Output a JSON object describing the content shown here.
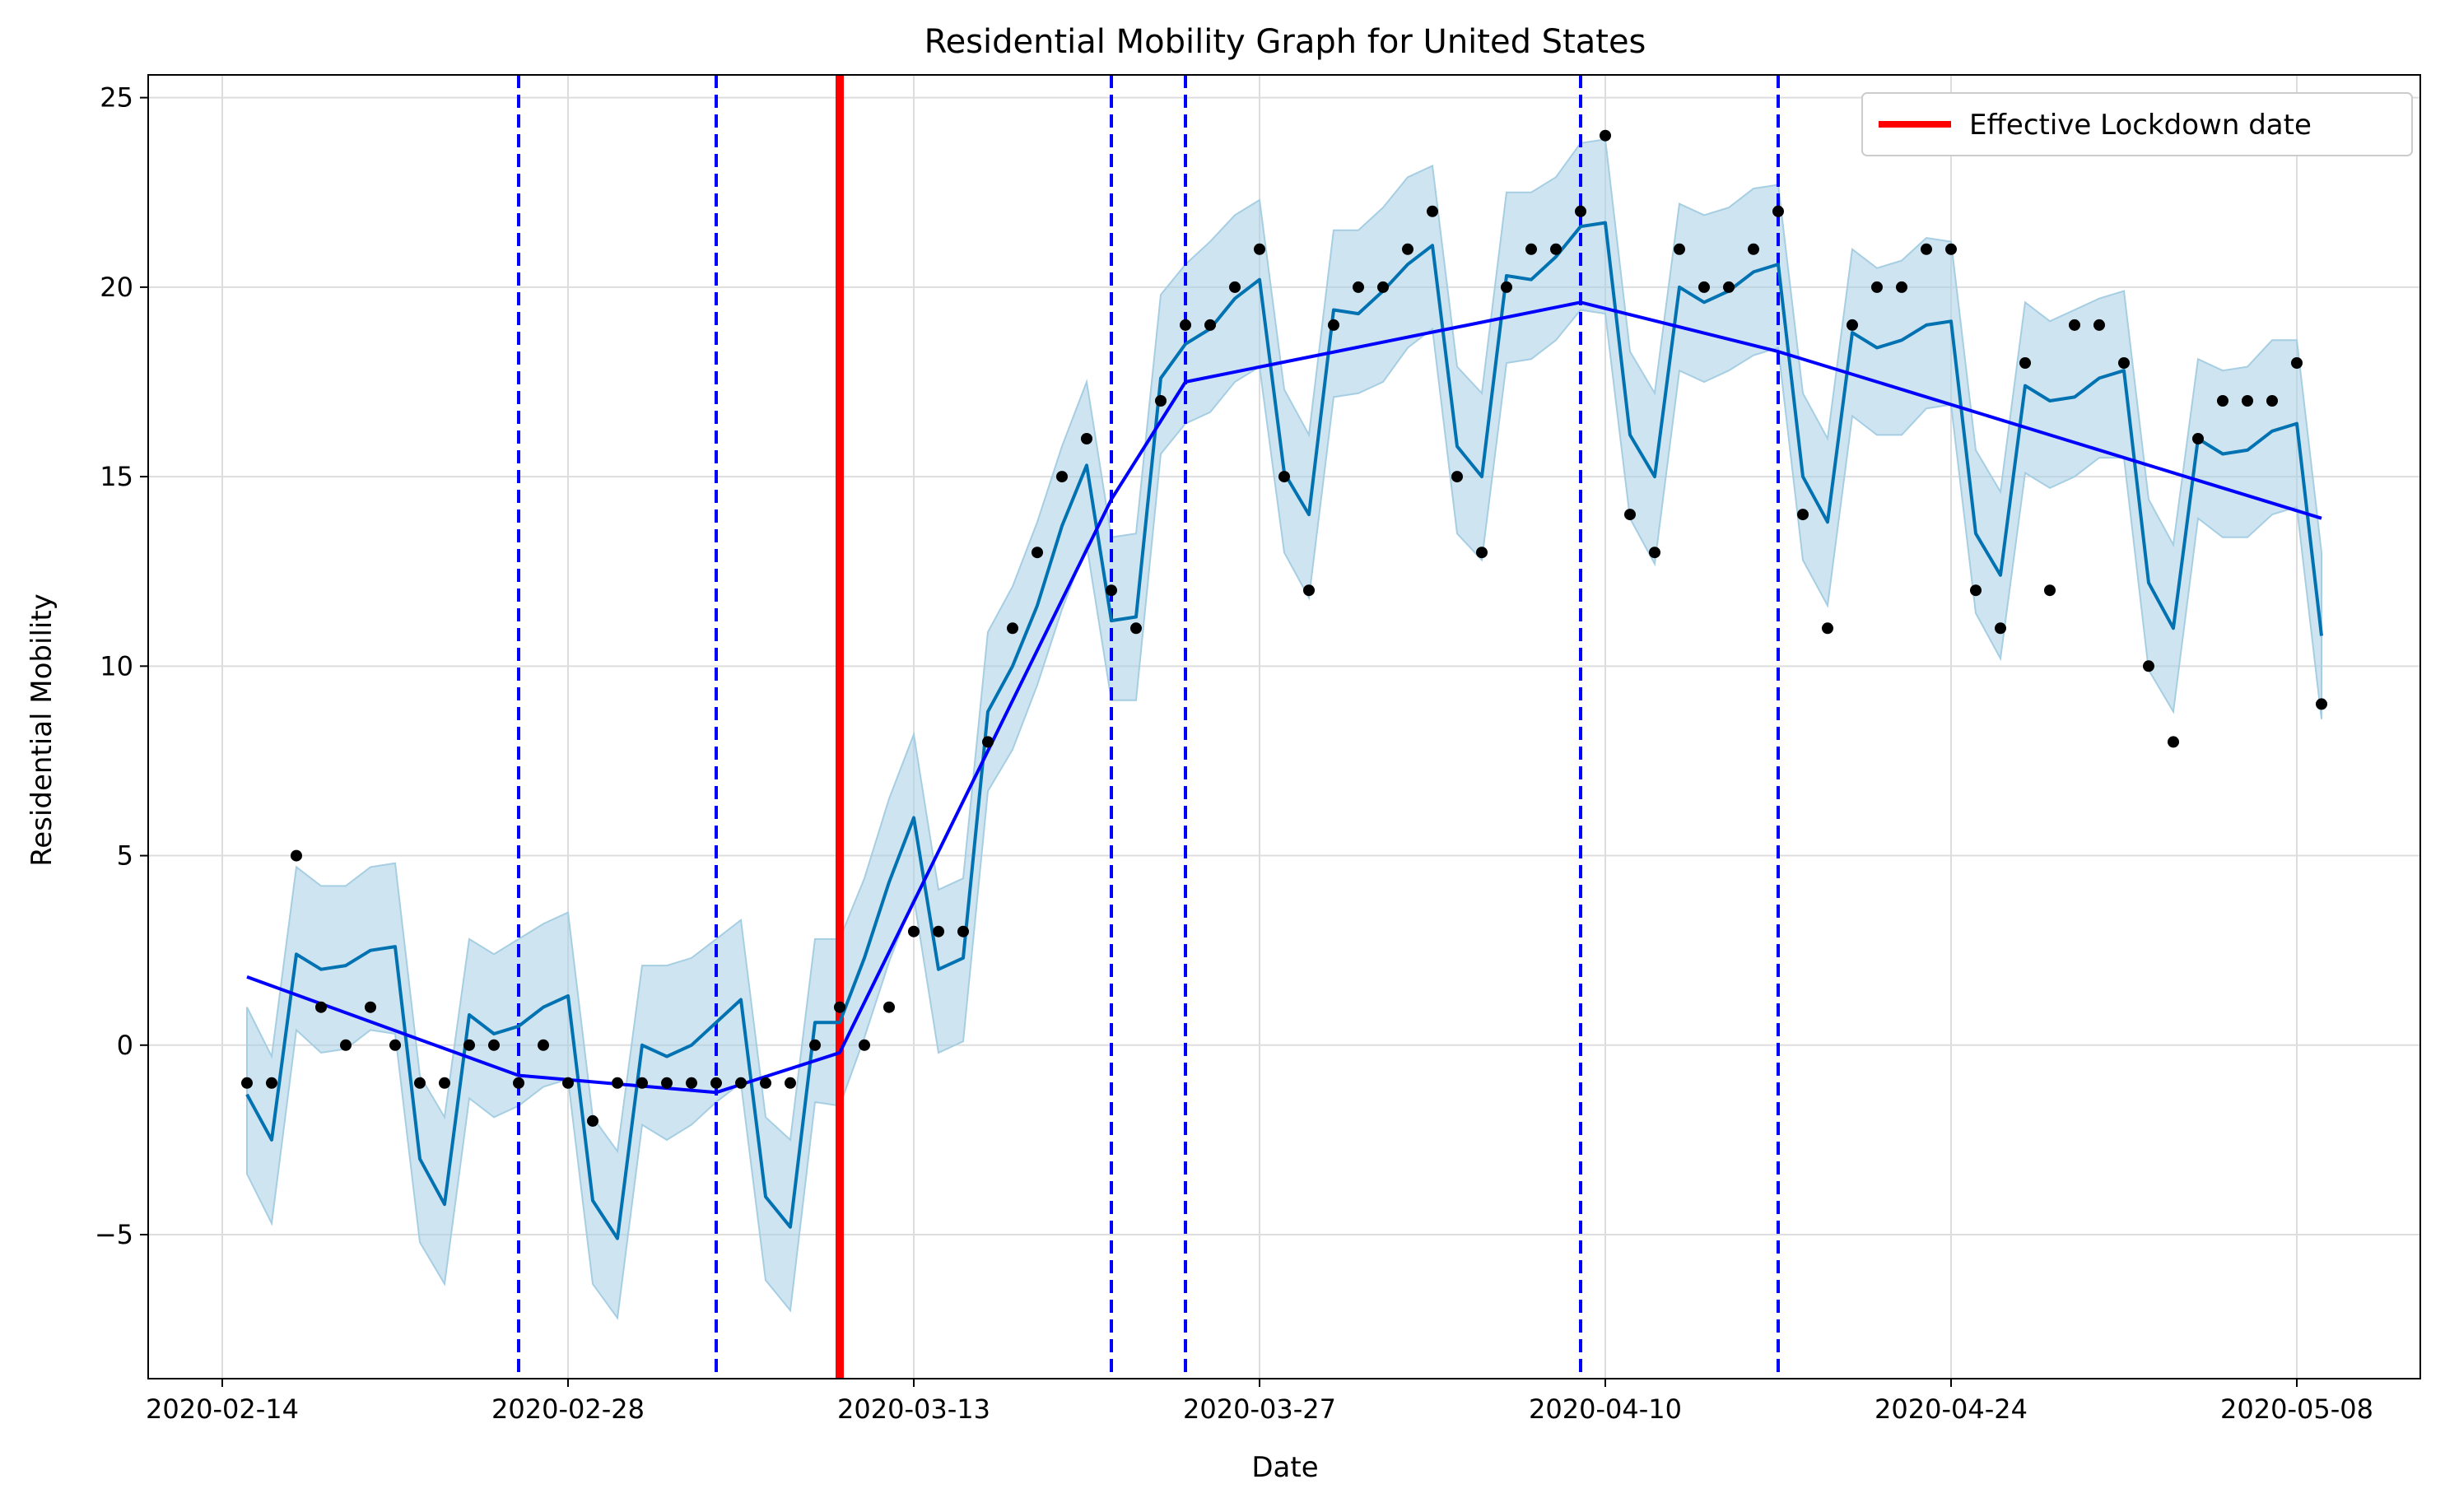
{
  "chart_data": {
    "type": "line",
    "title": "Residential Mobility Graph for United States",
    "xlabel": "Date",
    "ylabel": "Residential Mobility",
    "x_ticks": [
      "2020-02-14",
      "2020-02-28",
      "2020-03-13",
      "2020-03-27",
      "2020-04-10",
      "2020-04-24",
      "2020-05-08"
    ],
    "y_ticks": [
      -5,
      0,
      5,
      10,
      15,
      20,
      25
    ],
    "xlim": [
      "2020-02-11",
      "2020-05-13"
    ],
    "ylim": [
      -8.8,
      25.6
    ],
    "grid": true,
    "legend_position": "top-right",
    "legend": [
      {
        "label": "Effective Lockdown date",
        "color": "#ff0000"
      }
    ],
    "lockdown_date": "2020-03-10",
    "changepoint_dates": [
      "2020-02-26",
      "2020-03-05",
      "2020-03-21",
      "2020-03-24",
      "2020-04-09",
      "2020-04-17"
    ],
    "colors": {
      "observed": "#000000",
      "forecast": "#0072b2",
      "trend": "#0000ff",
      "uncertainty": "#a6cee3",
      "lockdown": "#ff0000",
      "changepoint": "#0000ff",
      "grid": "#dddddd"
    },
    "dates": [
      "2020-02-15",
      "2020-02-16",
      "2020-02-17",
      "2020-02-18",
      "2020-02-19",
      "2020-02-20",
      "2020-02-21",
      "2020-02-22",
      "2020-02-23",
      "2020-02-24",
      "2020-02-25",
      "2020-02-26",
      "2020-02-27",
      "2020-02-28",
      "2020-02-29",
      "2020-03-01",
      "2020-03-02",
      "2020-03-03",
      "2020-03-04",
      "2020-03-05",
      "2020-03-06",
      "2020-03-07",
      "2020-03-08",
      "2020-03-09",
      "2020-03-10",
      "2020-03-11",
      "2020-03-12",
      "2020-03-13",
      "2020-03-14",
      "2020-03-15",
      "2020-03-16",
      "2020-03-17",
      "2020-03-18",
      "2020-03-19",
      "2020-03-20",
      "2020-03-21",
      "2020-03-22",
      "2020-03-23",
      "2020-03-24",
      "2020-03-25",
      "2020-03-26",
      "2020-03-27",
      "2020-03-28",
      "2020-03-29",
      "2020-03-30",
      "2020-03-31",
      "2020-04-01",
      "2020-04-02",
      "2020-04-03",
      "2020-04-04",
      "2020-04-05",
      "2020-04-06",
      "2020-04-07",
      "2020-04-08",
      "2020-04-09",
      "2020-04-10",
      "2020-04-11",
      "2020-04-12",
      "2020-04-13",
      "2020-04-14",
      "2020-04-15",
      "2020-04-16",
      "2020-04-17",
      "2020-04-18",
      "2020-04-19",
      "2020-04-20",
      "2020-04-21",
      "2020-04-22",
      "2020-04-23",
      "2020-04-24",
      "2020-04-25",
      "2020-04-26",
      "2020-04-27",
      "2020-04-28",
      "2020-04-29",
      "2020-04-30",
      "2020-05-01",
      "2020-05-02",
      "2020-05-03",
      "2020-05-04",
      "2020-05-05",
      "2020-05-06",
      "2020-05-07",
      "2020-05-08",
      "2020-05-09"
    ],
    "observed": [
      -1,
      -1,
      5,
      1,
      0,
      1,
      0,
      -1,
      -1,
      0,
      0,
      -1,
      0,
      -1,
      -2,
      -1,
      -1,
      -1,
      -1,
      -1,
      -1,
      -1,
      -1,
      0,
      1,
      0,
      1,
      3,
      3,
      3,
      8,
      11,
      13,
      15,
      16,
      12,
      11,
      17,
      19,
      19,
      20,
      21,
      15,
      12,
      19,
      20,
      20,
      21,
      22,
      15,
      13,
      20,
      21,
      21,
      22,
      24,
      14,
      13,
      21,
      20,
      20,
      21,
      22,
      14,
      11,
      19,
      20,
      20,
      21,
      21,
      12,
      11,
      18,
      12,
      19,
      19,
      18,
      10,
      8,
      16,
      17,
      17,
      17,
      18,
      9
    ],
    "forecast": [
      -1.3,
      -2.5,
      2.4,
      2.0,
      2.1,
      2.5,
      2.6,
      -3.0,
      -4.2,
      0.8,
      0.3,
      0.5,
      1.0,
      1.3,
      -4.1,
      -5.1,
      0.0,
      -0.3,
      0.0,
      0.6,
      1.2,
      -4.0,
      -4.8,
      0.6,
      0.6,
      2.3,
      4.3,
      6.0,
      2.0,
      2.3,
      8.8,
      10.0,
      11.6,
      13.7,
      15.3,
      11.2,
      11.3,
      17.6,
      18.5,
      18.9,
      19.7,
      20.2,
      15.1,
      14.0,
      19.4,
      19.3,
      19.9,
      20.6,
      21.1,
      15.8,
      15.0,
      20.3,
      20.2,
      20.8,
      21.6,
      21.7,
      16.1,
      15.0,
      20.0,
      19.6,
      19.9,
      20.4,
      20.6,
      15.0,
      13.8,
      18.8,
      18.4,
      18.6,
      19.0,
      19.1,
      13.5,
      12.4,
      17.4,
      17.0,
      17.1,
      17.6,
      17.8,
      12.2,
      11.0,
      16.0,
      15.6,
      15.7,
      16.2,
      16.4,
      10.8
    ],
    "forecast_upper": [
      1.0,
      -0.3,
      4.7,
      4.2,
      4.2,
      4.7,
      4.8,
      -0.8,
      -1.9,
      2.8,
      2.4,
      2.8,
      3.2,
      3.5,
      -1.9,
      -2.8,
      2.1,
      2.1,
      2.3,
      2.8,
      3.3,
      -1.9,
      -2.5,
      2.8,
      2.8,
      4.4,
      6.5,
      8.2,
      4.1,
      4.4,
      10.9,
      12.1,
      13.8,
      15.8,
      17.5,
      13.4,
      13.5,
      19.8,
      20.6,
      21.2,
      21.9,
      22.3,
      17.3,
      16.1,
      21.5,
      21.5,
      22.1,
      22.9,
      23.2,
      17.9,
      17.2,
      22.5,
      22.5,
      22.9,
      23.8,
      23.9,
      18.3,
      17.2,
      22.2,
      21.9,
      22.1,
      22.6,
      22.7,
      17.2,
      16.0,
      21.0,
      20.5,
      20.7,
      21.3,
      21.2,
      15.7,
      14.6,
      19.6,
      19.1,
      19.4,
      19.7,
      19.9,
      14.4,
      13.2,
      18.1,
      17.8,
      17.9,
      18.6,
      18.6,
      13.0
    ],
    "forecast_lower": [
      -3.4,
      -4.7,
      0.4,
      -0.2,
      -0.1,
      0.4,
      0.3,
      -5.2,
      -6.3,
      -1.4,
      -1.9,
      -1.6,
      -1.1,
      -0.9,
      -6.3,
      -7.2,
      -2.1,
      -2.5,
      -2.1,
      -1.5,
      -1.0,
      -6.2,
      -7.0,
      -1.5,
      -1.6,
      0.2,
      2.2,
      3.9,
      -0.2,
      0.1,
      6.7,
      7.8,
      9.5,
      11.5,
      13.2,
      9.1,
      9.1,
      15.6,
      16.4,
      16.7,
      17.5,
      17.9,
      13.0,
      11.8,
      17.1,
      17.2,
      17.5,
      18.4,
      18.9,
      13.5,
      12.8,
      18.0,
      18.1,
      18.6,
      19.4,
      19.3,
      13.9,
      12.7,
      17.8,
      17.5,
      17.8,
      18.2,
      18.4,
      12.8,
      11.6,
      16.6,
      16.1,
      16.1,
      16.8,
      16.9,
      11.4,
      10.2,
      15.1,
      14.7,
      15.0,
      15.5,
      15.5,
      9.9,
      8.8,
      13.9,
      13.4,
      13.4,
      14.0,
      14.2,
      8.6
    ],
    "trend": [
      {
        "date": "2020-02-15",
        "value": 1.8
      },
      {
        "date": "2020-02-26",
        "value": -0.8
      },
      {
        "date": "2020-03-05",
        "value": -1.25
      },
      {
        "date": "2020-03-10",
        "value": -0.2
      },
      {
        "date": "2020-03-21",
        "value": 14.4
      },
      {
        "date": "2020-03-24",
        "value": 17.5
      },
      {
        "date": "2020-04-09",
        "value": 19.6
      },
      {
        "date": "2020-04-17",
        "value": 18.3
      },
      {
        "date": "2020-05-09",
        "value": 13.9
      }
    ]
  }
}
